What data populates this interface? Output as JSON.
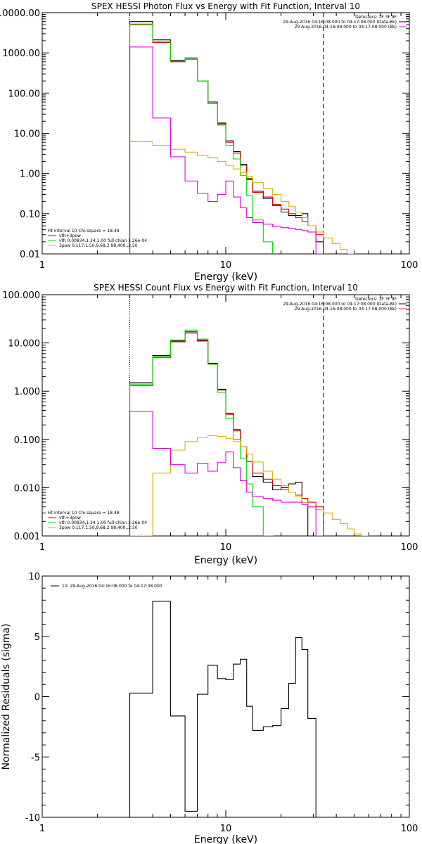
{
  "chart_data": [
    {
      "type": "line",
      "title": "SPEX HESSI Photon Flux vs Energy with Fit Function, Interval 10",
      "xlabel": "Energy (keV)",
      "ylabel": "",
      "xscale": "log",
      "yscale": "log",
      "xlim": [
        1,
        100
      ],
      "ylim": [
        0.01,
        10000
      ],
      "x_ticks": [
        "1",
        "10",
        "100"
      ],
      "y_ticks": [
        "0.01",
        "0.10",
        "1.00",
        "10.00",
        "100.00",
        "1000.00",
        "10000.00"
      ],
      "y_tick_values": [
        0.01,
        0.1,
        1,
        10,
        100,
        1000,
        10000
      ],
      "info_lines": [
        "Detectors: 1F 3F 9F",
        "29-Aug-2016 04:16:08.000 to 04:17:08.000 (Data-Bk)",
        "29-Aug-2016 04:16:08.000 to 04:17:08.000 (Bk)"
      ],
      "fit_lines": [
        "Fit Interval 10   Chi-square = 18.48",
        "vth+3pow",
        "vth 0.00834,1.34,1.00  full chian 1.26e-04",
        "3pow 0.117,1.50,9.68,2.98,400.,2.50"
      ],
      "vlines": {
        "dotted": 3.0,
        "dashed": 34.0
      },
      "edges": [
        3,
        4,
        5,
        6,
        7,
        8,
        9,
        10,
        11,
        12,
        13,
        14,
        16,
        18,
        20,
        22,
        24,
        26,
        28,
        31,
        34,
        38,
        42,
        46,
        50
      ],
      "series": [
        {
          "name": "Data-Bk",
          "color": "#000000",
          "values": [
            6000,
            2100,
            650,
            700,
            200,
            60,
            18,
            6.5,
            3.5,
            1.7,
            0.75,
            0.36,
            0.24,
            0.16,
            0.11,
            0.09,
            0.09,
            0.1,
            0.05,
            0.02,
            null,
            null,
            null,
            null
          ]
        },
        {
          "name": "vth+3pow",
          "color": "#e00000",
          "values": [
            5000,
            1800,
            600,
            750,
            200,
            55,
            17,
            6,
            3.2,
            1.6,
            0.7,
            0.34,
            0.26,
            0.17,
            0.13,
            0.1,
            0.08,
            0.065,
            0.05,
            0.03,
            null,
            null,
            null,
            null
          ]
        },
        {
          "name": "vth",
          "color": "#00dd00",
          "values": [
            5200,
            1900,
            620,
            750,
            200,
            55,
            16,
            5,
            2.3,
            0.9,
            0.28,
            0.07,
            0.02,
            null,
            null,
            null,
            null,
            null,
            null,
            null,
            null,
            null,
            null,
            null
          ]
        },
        {
          "name": "3pow",
          "color": "#d8b400",
          "values": [
            6.2,
            5.0,
            4.0,
            3.4,
            2.8,
            2.5,
            2.0,
            1.6,
            1.3,
            1.05,
            0.85,
            0.6,
            0.42,
            0.3,
            0.2,
            0.15,
            0.11,
            0.08,
            0.05,
            0.035,
            0.025,
            0.018,
            0.013,
            0.01
          ]
        },
        {
          "name": "magenta",
          "color": "#e000e0",
          "values": [
            1400,
            24,
            2.6,
            0.65,
            0.32,
            0.2,
            0.3,
            0.65,
            0.26,
            0.14,
            0.08,
            0.06,
            0.055,
            0.048,
            0.045,
            0.043,
            0.04,
            0.038,
            0.035,
            0.01,
            null,
            null,
            null,
            null
          ]
        }
      ]
    },
    {
      "type": "line",
      "title": "SPEX HESSI Count Flux vs Energy with Fit Function, Interval 10",
      "xlabel": "Energy (keV)",
      "ylabel": "",
      "xscale": "log",
      "yscale": "log",
      "xlim": [
        1,
        100
      ],
      "ylim": [
        0.001,
        100
      ],
      "x_ticks": [
        "1",
        "10",
        "100"
      ],
      "y_ticks": [
        "0.001",
        "0.010",
        "0.100",
        "1.000",
        "10.000",
        "100.000"
      ],
      "y_tick_values": [
        0.001,
        0.01,
        0.1,
        1,
        10,
        100
      ],
      "info_lines": [
        "Detectors: 1F 3F 9F",
        "29-Aug-2016 04:16:08.000 to 04:17:08.000 (Data-Bk)",
        "29-Aug-2016 04:16:08.000 to 04:17:08.000 (Bk)"
      ],
      "fit_lines": [
        "Fit Interval 10   Chi-square = 18.48",
        "vth+3pow",
        "vth 0.00834,1.34,1.00  full chian 1.26e-04",
        "3pow 0.117,1.50,9.68,2.98,400.,2.50"
      ],
      "vlines": {
        "dotted": 3.0,
        "dashed": 34.0
      },
      "edges": [
        3,
        4,
        5,
        6,
        7,
        8,
        9,
        10,
        11,
        12,
        13,
        14,
        16,
        18,
        20,
        22,
        24,
        26,
        28,
        31,
        34,
        38,
        42,
        46,
        50,
        55,
        60
      ],
      "series": [
        {
          "name": "Data-Bk",
          "color": "#000000",
          "values": [
            1.5,
            5.5,
            11,
            17,
            11,
            3.8,
            1.1,
            0.35,
            0.16,
            0.07,
            0.035,
            0.017,
            0.013,
            0.009,
            0.01,
            0.012,
            0.013,
            0.005,
            0.001,
            null,
            null,
            null,
            null,
            null,
            null,
            null
          ]
        },
        {
          "name": "vth+3pow",
          "color": "#e00000",
          "values": [
            1.3,
            5.0,
            10.5,
            16,
            11.5,
            3.7,
            1.05,
            0.33,
            0.15,
            0.07,
            0.035,
            0.02,
            0.015,
            0.011,
            0.009,
            0.008,
            0.007,
            0.006,
            0.005,
            0.004,
            null,
            null,
            null,
            null,
            null,
            null
          ]
        },
        {
          "name": "vth",
          "color": "#00dd00",
          "values": [
            1.4,
            5.3,
            11.5,
            18.5,
            12,
            3.6,
            0.95,
            0.27,
            0.1,
            0.04,
            0.012,
            0.004,
            0.001,
            null,
            null,
            null,
            null,
            null,
            null,
            null,
            null,
            null,
            null,
            null,
            null,
            null
          ]
        },
        {
          "name": "3pow",
          "color": "#d8b400",
          "values": [
            0.001,
            0.02,
            0.06,
            0.09,
            0.11,
            0.12,
            0.115,
            0.105,
            0.09,
            0.07,
            0.05,
            0.034,
            0.022,
            0.015,
            0.011,
            0.008,
            0.0065,
            0.005,
            0.004,
            0.0035,
            0.003,
            0.0022,
            0.0018,
            0.0014,
            0.0011,
            0.001
          ]
        },
        {
          "name": "magenta",
          "color": "#e000e0",
          "values": [
            0.38,
            0.065,
            0.03,
            0.02,
            0.032,
            0.022,
            0.033,
            0.055,
            0.026,
            0.014,
            0.008,
            0.0065,
            0.006,
            0.0055,
            0.005,
            0.005,
            0.005,
            0.0045,
            0.004,
            0.001,
            null,
            null,
            null,
            null,
            null,
            null
          ]
        }
      ]
    },
    {
      "type": "line",
      "title": "",
      "xlabel": "Energy (keV)",
      "ylabel": "Normalized Residuals (sigma)",
      "xscale": "log",
      "yscale": "linear",
      "xlim": [
        1,
        100
      ],
      "ylim": [
        -10,
        10
      ],
      "x_ticks": [
        "1",
        "10",
        "100"
      ],
      "y_ticks": [
        "-10",
        "-5",
        "0",
        "5",
        "10"
      ],
      "y_tick_values": [
        -10,
        -5,
        0,
        5,
        10
      ],
      "legend": "10. 29-Aug-2016 04:16:08.000 to 04:17:08.000",
      "edges": [
        3,
        4,
        5,
        6,
        7,
        8,
        9,
        10,
        11,
        12,
        13,
        14,
        16,
        18,
        20,
        22,
        24,
        26,
        28,
        31,
        34
      ],
      "series": [
        {
          "name": "10. 29-Aug-2016 04:16:08.000 to 04:17:08.000",
          "color": "#000000",
          "values": [
            0.3,
            7.9,
            -1.6,
            -9.5,
            0.2,
            2.6,
            1.5,
            1.4,
            2.7,
            3.1,
            -0.8,
            -2.8,
            -2.5,
            -2.4,
            -1.0,
            1.1,
            4.9,
            3.9,
            -1.8,
            -10
          ]
        }
      ]
    }
  ]
}
